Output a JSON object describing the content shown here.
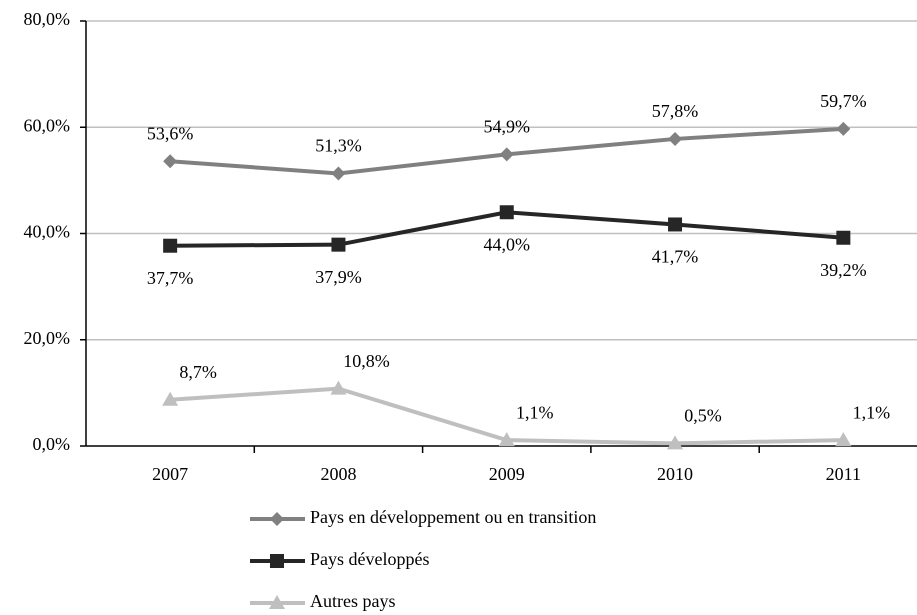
{
  "chart_data": {
    "type": "line",
    "categories": [
      "2007",
      "2008",
      "2009",
      "2010",
      "2011"
    ],
    "series": [
      {
        "name": "Pays en développement ou en transition",
        "color": "#808080",
        "marker": "diamond",
        "values": [
          53.6,
          51.3,
          54.9,
          57.8,
          59.7
        ],
        "value_labels": [
          "53,6%",
          "51,3%",
          "54,9%",
          "57,8%",
          "59,7%"
        ]
      },
      {
        "name": "Pays développés",
        "color": "#262626",
        "marker": "square",
        "values": [
          37.7,
          37.9,
          44.0,
          41.7,
          39.2
        ],
        "value_labels": [
          "37,7%",
          "37,9%",
          "44,0%",
          "41,7%",
          "39,2%"
        ]
      },
      {
        "name": "Autres pays",
        "color": "#bfbfbf",
        "marker": "triangle",
        "values": [
          8.7,
          10.8,
          1.1,
          0.5,
          1.1
        ],
        "value_labels": [
          "8,7%",
          "10,8%",
          "1,1%",
          "0,5%",
          "1,1%"
        ]
      }
    ],
    "ylim": [
      0,
      80
    ],
    "yticks": [
      {
        "value": 0,
        "label": "0,0%"
      },
      {
        "value": 20,
        "label": "20,0%"
      },
      {
        "value": 40,
        "label": "40,0%"
      },
      {
        "value": 60,
        "label": "60,0%"
      },
      {
        "value": 80,
        "label": "80,0%"
      }
    ],
    "grid": true,
    "legend": "bottom"
  }
}
